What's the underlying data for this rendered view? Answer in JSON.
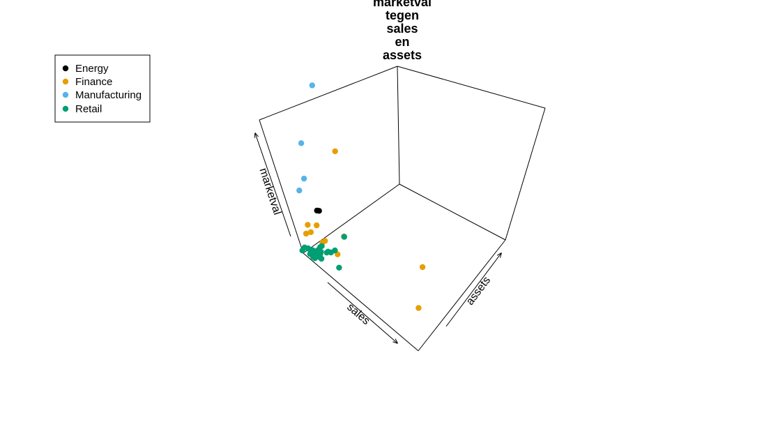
{
  "chart_data": {
    "type": "scatter",
    "title_lines": [
      "marketval",
      "tegen",
      "sales",
      "en",
      "assets"
    ],
    "axes": {
      "x": "sales",
      "y": "assets",
      "z": "marketval"
    },
    "legend": {
      "position": "top-left",
      "entries": [
        {
          "name": "Energy",
          "color": "#000000"
        },
        {
          "name": "Finance",
          "color": "#E69F00"
        },
        {
          "name": "Manufacturing",
          "color": "#56B4E9"
        },
        {
          "name": "Retail",
          "color": "#009E73"
        }
      ]
    },
    "series": [
      {
        "name": "Energy",
        "color": "#000000",
        "points": [
          {
            "x": 0.12,
            "y": 0.15,
            "z": 0.33
          },
          {
            "x": 0.13,
            "y": 0.16,
            "z": 0.33
          }
        ]
      },
      {
        "name": "Finance",
        "color": "#E69F00",
        "points": [
          {
            "x": 0.0,
            "y": 0.55,
            "z": 0.48
          },
          {
            "x": 0.58,
            "y": 0.56,
            "z": 0.03
          },
          {
            "x": 0.8,
            "y": 0.26,
            "z": 0.04
          },
          {
            "x": 0.17,
            "y": 0.27,
            "z": 0.11
          },
          {
            "x": 0.1,
            "y": 0.12,
            "z": 0.22
          },
          {
            "x": 0.08,
            "y": 0.06,
            "z": 0.24
          },
          {
            "x": 0.1,
            "y": 0.12,
            "z": 0.09
          },
          {
            "x": 0.06,
            "y": 0.08,
            "z": 0.16
          },
          {
            "x": 0.04,
            "y": 0.05,
            "z": 0.15
          },
          {
            "x": 0.18,
            "y": 0.16,
            "z": 0.04
          },
          {
            "x": 0.11,
            "y": 0.14,
            "z": 0.1
          },
          {
            "x": 0.04,
            "y": 0.05,
            "z": 0.02
          }
        ]
      },
      {
        "name": "Manufacturing",
        "color": "#56B4E9",
        "points": [
          {
            "x": 0.0,
            "y": 0.54,
            "z": 0.98
          },
          {
            "x": 0.04,
            "y": 0.26,
            "z": 0.72
          },
          {
            "x": 0.22,
            "y": 0.06,
            "z": 0.69
          },
          {
            "x": 0.13,
            "y": 0.05,
            "z": 0.54
          }
        ]
      },
      {
        "name": "Retail",
        "color": "#009E73",
        "points": [
          {
            "x": 0.1,
            "y": 0.32,
            "z": 0.03
          },
          {
            "x": 0.18,
            "y": 0.11,
            "z": 0.08
          },
          {
            "x": 0.26,
            "y": 0.08,
            "z": 0.04
          },
          {
            "x": 0.14,
            "y": 0.04,
            "z": 0.04
          },
          {
            "x": 0.12,
            "y": 0.0,
            "z": 0.05
          },
          {
            "x": 0.07,
            "y": 0.07,
            "z": 0.03
          },
          {
            "x": 0.06,
            "y": 0.09,
            "z": 0.02
          },
          {
            "x": 0.1,
            "y": 0.13,
            "z": 0.01
          },
          {
            "x": 0.09,
            "y": 0.15,
            "z": 0.0
          },
          {
            "x": 0.12,
            "y": 0.19,
            "z": 0.01
          },
          {
            "x": 0.04,
            "y": 0.06,
            "z": 0.02
          },
          {
            "x": 0.02,
            "y": 0.04,
            "z": 0.03
          },
          {
            "x": 0.03,
            "y": 0.05,
            "z": 0.02
          },
          {
            "x": 0.05,
            "y": 0.02,
            "z": 0.02
          },
          {
            "x": 0.01,
            "y": 0.02,
            "z": 0.04
          },
          {
            "x": 0.0,
            "y": 0.0,
            "z": 0.02
          },
          {
            "x": 0.04,
            "y": 0.04,
            "z": 0.01
          },
          {
            "x": 0.05,
            "y": 0.05,
            "z": 0.01
          },
          {
            "x": 0.06,
            "y": 0.06,
            "z": 0.02
          },
          {
            "x": 0.08,
            "y": 0.06,
            "z": 0.01
          },
          {
            "x": 0.09,
            "y": 0.08,
            "z": 0.02
          },
          {
            "x": 0.09,
            "y": 0.09,
            "z": 0.03
          },
          {
            "x": 0.05,
            "y": 0.04,
            "z": 0.04
          },
          {
            "x": 0.03,
            "y": 0.05,
            "z": 0.01
          },
          {
            "x": 0.07,
            "y": 0.11,
            "z": 0.04
          },
          {
            "x": 0.06,
            "y": 0.03,
            "z": 0.0
          },
          {
            "x": 0.05,
            "y": 0.03,
            "z": 0.02
          },
          {
            "x": 0.04,
            "y": 0.04,
            "z": 0.03
          },
          {
            "x": 0.08,
            "y": 0.12,
            "z": 0.05
          },
          {
            "x": 0.11,
            "y": 0.07,
            "z": 0.05
          },
          {
            "x": 0.1,
            "y": 0.06,
            "z": 0.01
          }
        ]
      }
    ]
  }
}
